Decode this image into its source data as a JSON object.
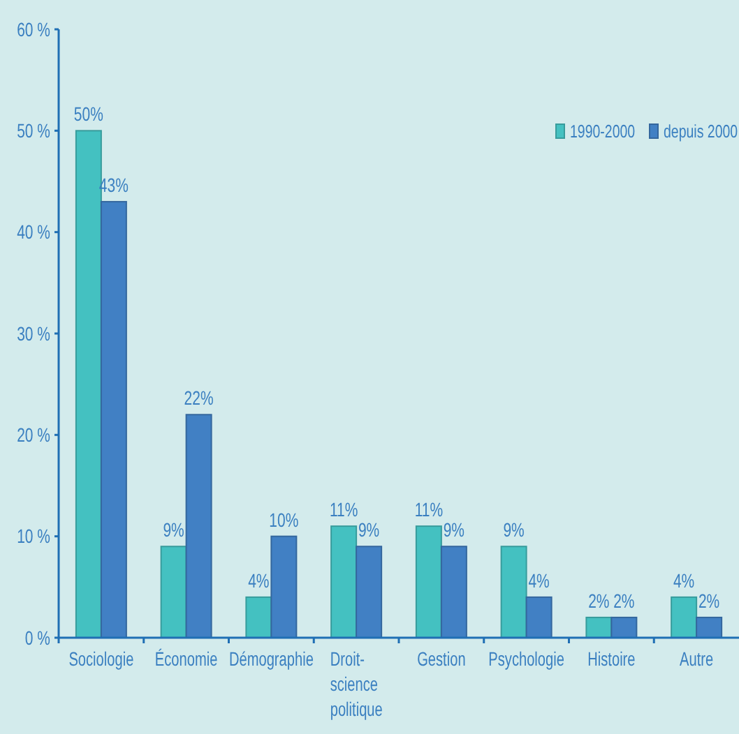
{
  "chart_data": {
    "type": "bar",
    "categories": [
      "Sociologie",
      "Économie",
      "Démographie",
      "Droit-science politique",
      "Gestion",
      "Psychologie",
      "Histoire",
      "Autre"
    ],
    "series": [
      {
        "name": "1990-2000",
        "color": "#44c1c1",
        "values": [
          50,
          9,
          4,
          11,
          11,
          9,
          2,
          4
        ],
        "value_labels": [
          "50%",
          "9%",
          "4%",
          "11%",
          "11%",
          "9%",
          "2%",
          "4%"
        ]
      },
      {
        "name": "depuis 2000",
        "color": "#4180c4",
        "values": [
          43,
          22,
          10,
          9,
          9,
          4,
          2,
          2
        ],
        "value_labels": [
          "43%",
          "22%",
          "10%",
          "9%",
          "9%",
          "4%",
          "2%",
          "2%"
        ]
      }
    ],
    "ylim": [
      0,
      60
    ],
    "yticks": [
      {
        "value": 0,
        "label": "0 %"
      },
      {
        "value": 10,
        "label": "10 %"
      },
      {
        "value": 20,
        "label": "20 %"
      },
      {
        "value": 30,
        "label": "30 %"
      },
      {
        "value": 40,
        "label": "40 %"
      },
      {
        "value": 50,
        "label": "50 %"
      },
      {
        "value": 60,
        "label": "60 %"
      }
    ],
    "grid": false,
    "legend": "top right"
  }
}
